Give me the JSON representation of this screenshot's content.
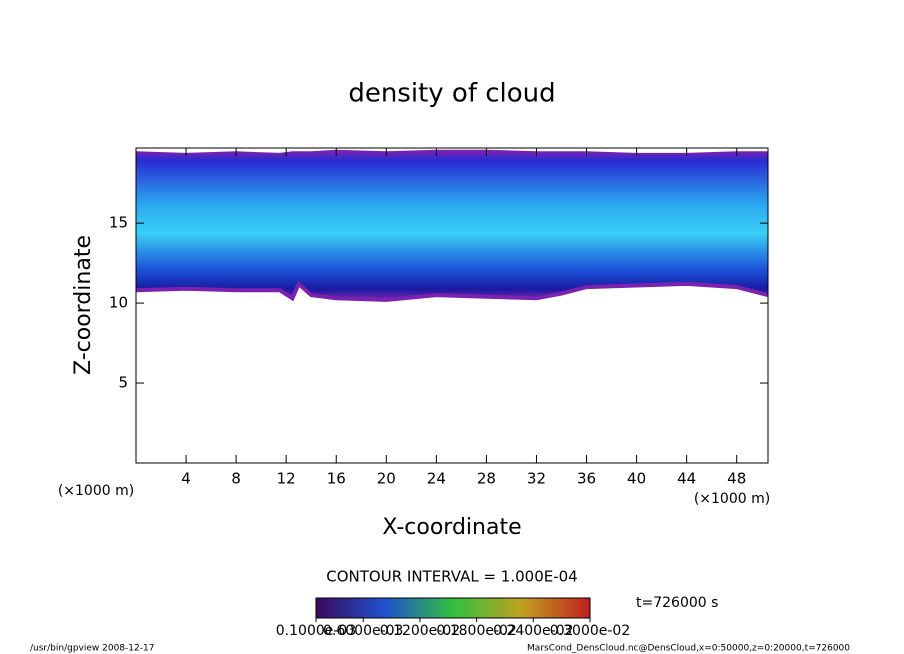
{
  "chart_data": {
    "type": "contour",
    "title": "density of cloud",
    "x_label": "X-coordinate",
    "y_label": "Z-coordinate",
    "x_unit": "(×1000 m)",
    "y_unit": "(×1000 m)",
    "xlim": [
      0,
      50.5
    ],
    "ylim": [
      0,
      19.7
    ],
    "xticks": [
      4,
      8,
      12,
      16,
      20,
      24,
      28,
      32,
      36,
      40,
      44,
      48
    ],
    "yticks": [
      5,
      10,
      15
    ],
    "x": [
      0,
      4,
      8,
      11.5,
      12.5,
      13,
      14,
      16,
      20,
      24,
      28,
      32,
      34,
      36,
      40,
      44,
      48,
      50.5
    ],
    "cloud_base": [
      10.8,
      10.9,
      10.8,
      10.8,
      10.3,
      11.2,
      10.5,
      10.3,
      10.2,
      10.5,
      10.4,
      10.3,
      10.6,
      11.0,
      11.1,
      11.2,
      11.0,
      10.5
    ],
    "cloud_top": [
      19.4,
      19.3,
      19.4,
      19.3,
      19.4,
      19.4,
      19.4,
      19.5,
      19.4,
      19.5,
      19.5,
      19.4,
      19.4,
      19.4,
      19.3,
      19.3,
      19.4,
      19.4
    ],
    "contour_interval": "CONTOUR INTERVAL = 1.000E-04",
    "time_label": "t=726000 s",
    "colorbar_ticks": [
      {
        "value": 0.0001,
        "label": "0.1000e-03"
      },
      {
        "value": 0.0006,
        "label": "0.6000e-03"
      },
      {
        "value": 0.0012,
        "label": "0.1200e-02"
      },
      {
        "value": 0.0018,
        "label": "0.1800e-02"
      },
      {
        "value": 0.0024,
        "label": "0.2400e-02"
      },
      {
        "value": 0.003,
        "label": "0.3000e-02"
      }
    ],
    "colorbar_lim": [
      0.0001,
      0.003
    ],
    "footer_left": "/usr/bin/gpview   2008-12-17",
    "footer_right": "MarsCond_DensCloud.nc@DensCloud,x=0:50000,z=0:20000,t=726000"
  }
}
